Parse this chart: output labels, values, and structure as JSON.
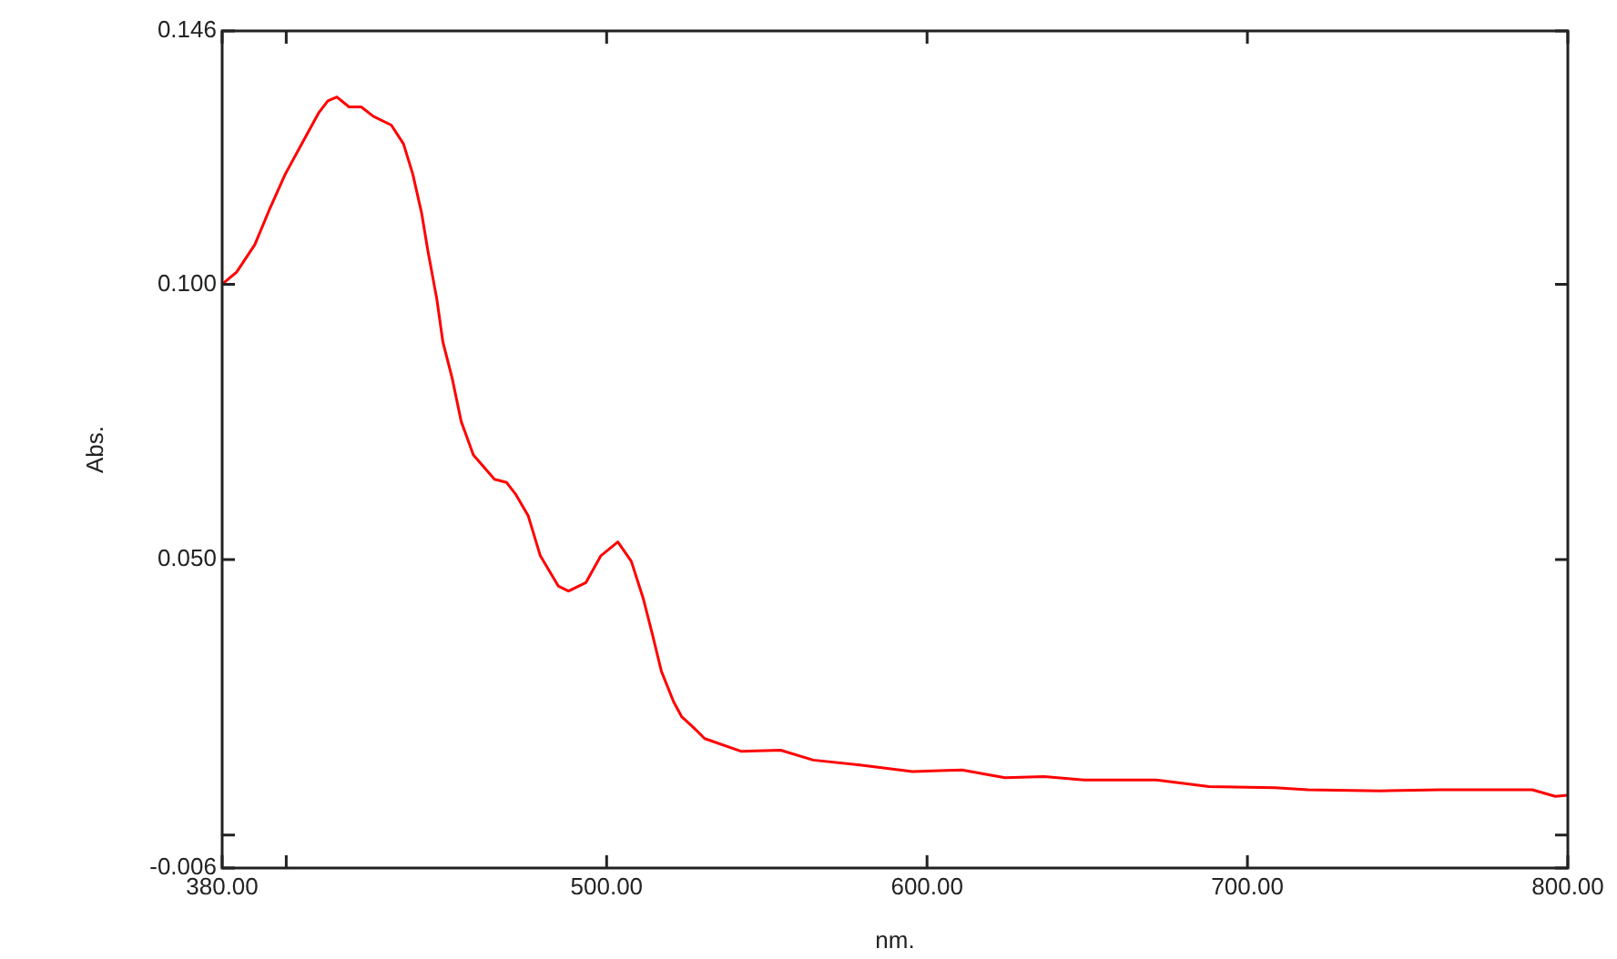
{
  "chart_data": {
    "type": "line",
    "xlabel": "nm.",
    "ylabel": "Abs.",
    "x": [
      380,
      384.5,
      390.2,
      395,
      399.7,
      405.4,
      410.1,
      413,
      415.8,
      419.6,
      423.4,
      427.2,
      432.8,
      436.6,
      439.5,
      442.3,
      444.2,
      447,
      448.9,
      451.8,
      454.6,
      458.4,
      465,
      468.8,
      471.7,
      475.5,
      479.3,
      484.9,
      488.1,
      493.5,
      498.2,
      503.5,
      507.7,
      511.4,
      514.3,
      517.1,
      520.9,
      523.4,
      526.6,
      530.6,
      541.9,
      554.3,
      564.5,
      579,
      595.5,
      610.9,
      624.3,
      636.6,
      649,
      671.6,
      688,
      708.6,
      718.9,
      741.6,
      760.1,
      788.9,
      796.1,
      800
    ],
    "series": [
      {
        "color": "#ff0000",
        "values": [
          0.1,
          0.1022,
          0.1072,
          0.1139,
          0.12,
          0.1261,
          0.1311,
          0.1333,
          0.134,
          0.1322,
          0.1322,
          0.1305,
          0.1289,
          0.1255,
          0.12,
          0.1128,
          0.1061,
          0.0973,
          0.0895,
          0.0829,
          0.0751,
          0.069,
          0.0646,
          0.064,
          0.0618,
          0.058,
          0.0507,
          0.0452,
          0.0443,
          0.0458,
          0.0507,
          0.0532,
          0.0497,
          0.043,
          0.0364,
          0.0297,
          0.0242,
          0.0215,
          0.0198,
          0.0175,
          0.0152,
          0.0154,
          0.0136,
          0.0127,
          0.0115,
          0.0118,
          0.0104,
          0.0106,
          0.01,
          0.01,
          0.0088,
          0.0086,
          0.0082,
          0.008,
          0.0082,
          0.0082,
          0.007,
          0.0072
        ]
      }
    ],
    "xlim": [
      380,
      800
    ],
    "xticks": [
      {
        "value": 380,
        "label": "380.00"
      },
      {
        "value": 400,
        "label": null
      },
      {
        "value": 500,
        "label": "500.00"
      },
      {
        "value": 600,
        "label": "600.00"
      },
      {
        "value": 700,
        "label": "700.00"
      },
      {
        "value": 800,
        "label": "800.00"
      }
    ],
    "ylim": [
      -0.006,
      0.146
    ],
    "yticks": [
      {
        "value": -0.006,
        "label": "-0.006"
      },
      {
        "value": 0,
        "label": null
      },
      {
        "value": 0.05,
        "label": "0.050"
      },
      {
        "value": 0.1,
        "label": "0.100"
      },
      {
        "value": 0.146,
        "label": "0.146"
      }
    ],
    "grid": false,
    "legend": false,
    "marker": "none",
    "line_style": "solid"
  }
}
